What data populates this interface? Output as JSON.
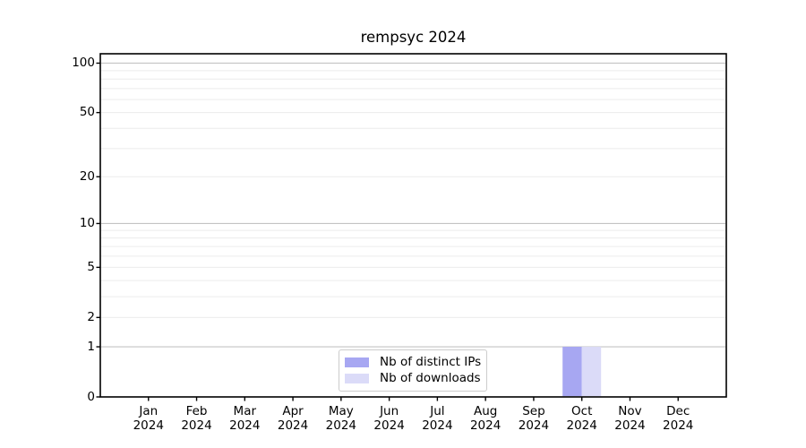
{
  "chart_data": {
    "type": "bar",
    "title": "rempsyc 2024",
    "categories": [
      {
        "label": "Jan",
        "sub": "2024"
      },
      {
        "label": "Feb",
        "sub": "2024"
      },
      {
        "label": "Mar",
        "sub": "2024"
      },
      {
        "label": "Apr",
        "sub": "2024"
      },
      {
        "label": "May",
        "sub": "2024"
      },
      {
        "label": "Jun",
        "sub": "2024"
      },
      {
        "label": "Jul",
        "sub": "2024"
      },
      {
        "label": "Aug",
        "sub": "2024"
      },
      {
        "label": "Sep",
        "sub": "2024"
      },
      {
        "label": "Oct",
        "sub": "2024"
      },
      {
        "label": "Nov",
        "sub": "2024"
      },
      {
        "label": "Dec",
        "sub": "2024"
      }
    ],
    "series": [
      {
        "name": "Nb of distinct IPs",
        "color": "#a7a7f2",
        "values": [
          0,
          0,
          0,
          0,
          0,
          0,
          0,
          0,
          0,
          1,
          0,
          0
        ]
      },
      {
        "name": "Nb of downloads",
        "color": "#dbdbf8",
        "values": [
          0,
          0,
          0,
          0,
          0,
          0,
          0,
          0,
          0,
          1,
          0,
          0
        ]
      }
    ],
    "xlabel": "",
    "ylabel": "",
    "y_scale": "log10(1+value)",
    "y_ticks": [
      0,
      1,
      2,
      5,
      10,
      20,
      50,
      100
    ],
    "y_max_at_top_edge": 114,
    "gridlines": {
      "decade": [
        1,
        10,
        100
      ],
      "minor": [
        2,
        3,
        4,
        5,
        6,
        7,
        8,
        9,
        20,
        30,
        40,
        50,
        60,
        70,
        80,
        90
      ]
    },
    "legend": {
      "position": "lower-center"
    },
    "colors": {
      "background": "#ffffff",
      "grid_decade": "#c3c3c3",
      "grid_minor": "#ececec",
      "spine": "#000000",
      "tick": "#000000",
      "text": "#000000",
      "legend_border": "#cccccc"
    }
  }
}
